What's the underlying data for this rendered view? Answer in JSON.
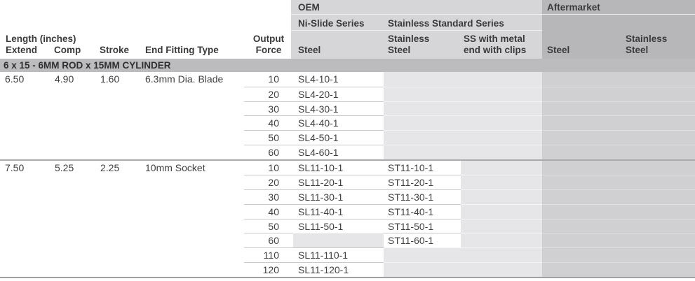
{
  "header": {
    "length_section": "Length (inches)",
    "extend": "Extend",
    "comp": "Comp",
    "stroke": "Stroke",
    "fitting": "End Fitting Type",
    "output_line1": "Output",
    "output_line2": "Force",
    "oem": {
      "label": "OEM",
      "ni_slide_series": "Ni-Slide Series",
      "ni_slide_steel": "Steel",
      "stainless_series": "Stainless Standard Series",
      "stainless_l1": "Stainless",
      "stainless_l2": "Steel",
      "ss_clips_l1": "SS with metal",
      "ss_clips_l2": "end with clips"
    },
    "aftermarket": {
      "label": "Aftermarket",
      "steel": "Steel",
      "stainless_l1": "Stainless",
      "stainless_l2": "Steel"
    }
  },
  "section_title": "6 x 15 - 6MM ROD x 15MM CYLINDER",
  "table": {
    "groups": [
      {
        "extend": "6.50",
        "comp": "4.90",
        "stroke": "1.60",
        "fitting": "6.3mm Dia. Blade",
        "rows": [
          {
            "force": "10",
            "oem_steel": "SL4-10-1",
            "oem_stainless": "",
            "ss_clips": "",
            "am_steel": "",
            "am_stainless": ""
          },
          {
            "force": "20",
            "oem_steel": "SL4-20-1",
            "oem_stainless": "",
            "ss_clips": "",
            "am_steel": "",
            "am_stainless": ""
          },
          {
            "force": "30",
            "oem_steel": "SL4-30-1",
            "oem_stainless": "",
            "ss_clips": "",
            "am_steel": "",
            "am_stainless": ""
          },
          {
            "force": "40",
            "oem_steel": "SL4-40-1",
            "oem_stainless": "",
            "ss_clips": "",
            "am_steel": "",
            "am_stainless": ""
          },
          {
            "force": "50",
            "oem_steel": "SL4-50-1",
            "oem_stainless": "",
            "ss_clips": "",
            "am_steel": "",
            "am_stainless": ""
          },
          {
            "force": "60",
            "oem_steel": "SL4-60-1",
            "oem_stainless": "",
            "ss_clips": "",
            "am_steel": "",
            "am_stainless": ""
          }
        ]
      },
      {
        "extend": "7.50",
        "comp": "5.25",
        "stroke": "2.25",
        "fitting": "10mm Socket",
        "rows": [
          {
            "force": "10",
            "oem_steel": "SL11-10-1",
            "oem_stainless": "ST11-10-1",
            "ss_clips": "",
            "am_steel": "",
            "am_stainless": ""
          },
          {
            "force": "20",
            "oem_steel": "SL11-20-1",
            "oem_stainless": "ST11-20-1",
            "ss_clips": "",
            "am_steel": "",
            "am_stainless": ""
          },
          {
            "force": "30",
            "oem_steel": "SL11-30-1",
            "oem_stainless": "ST11-30-1",
            "ss_clips": "",
            "am_steel": "",
            "am_stainless": ""
          },
          {
            "force": "40",
            "oem_steel": "SL11-40-1",
            "oem_stainless": "ST11-40-1",
            "ss_clips": "",
            "am_steel": "",
            "am_stainless": ""
          },
          {
            "force": "50",
            "oem_steel": "SL11-50-1",
            "oem_stainless": "ST11-50-1",
            "ss_clips": "",
            "am_steel": "",
            "am_stainless": ""
          },
          {
            "force": "60",
            "oem_steel": "",
            "oem_stainless": "ST11-60-1",
            "ss_clips": "",
            "am_steel": "",
            "am_stainless": ""
          },
          {
            "force": "110",
            "oem_steel": "SL11-110-1",
            "oem_stainless": "",
            "ss_clips": "",
            "am_steel": "",
            "am_stainless": ""
          },
          {
            "force": "120",
            "oem_steel": "SL11-120-1",
            "oem_stainless": "",
            "ss_clips": "",
            "am_steel": "",
            "am_stainless": ""
          }
        ]
      }
    ]
  },
  "colors": {
    "oem_header_bg": "#d6d6d8",
    "aftermarket_header_bg": "#b7b7b9",
    "section_band_bg": "#bcbcbe",
    "empty_oem_cell_bg": "#e6e6e8",
    "aftermarket_cell_bg": "#d0d0d2",
    "filled_cell_bg": "#ffffff",
    "text": "#404042"
  }
}
